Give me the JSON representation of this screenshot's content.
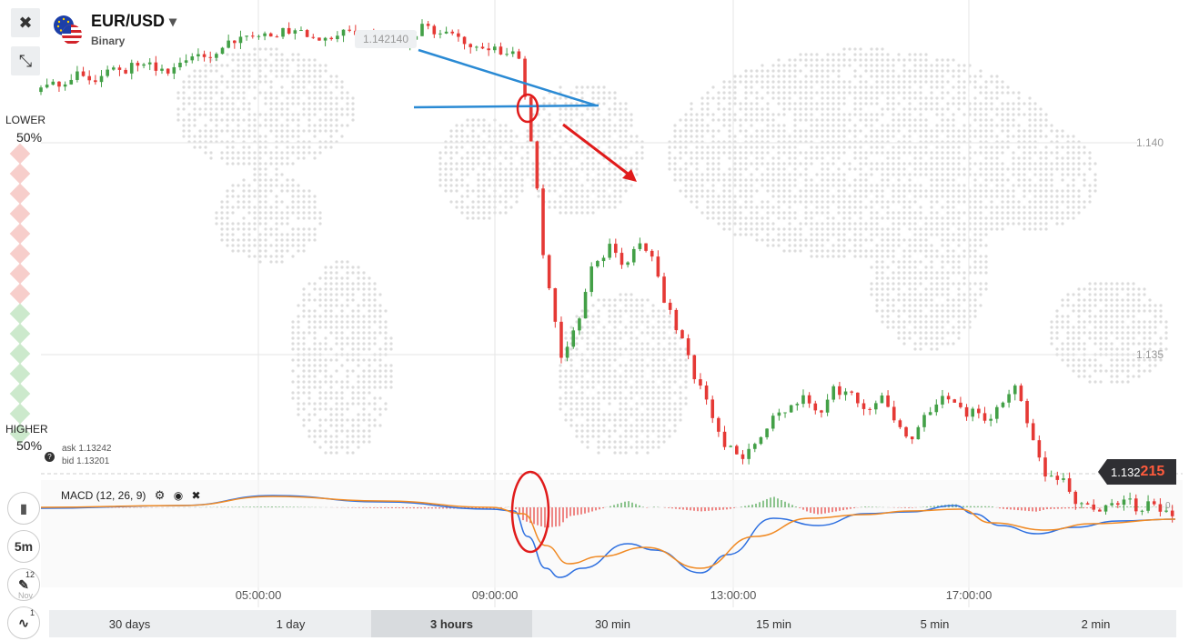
{
  "header": {
    "pair": "EUR/USD",
    "type": "Binary",
    "close_glyph": "✖",
    "collapse_glyph": "⤡",
    "dropdown_glyph": "▾"
  },
  "side": {
    "lower_label": "LOWER",
    "lower_pct": "50%",
    "higher_label": "HIGHER",
    "higher_pct": "50%",
    "ask": "ask 1.13242",
    "bid": "bid 1.13201",
    "help_glyph": "?"
  },
  "price_axis": {
    "top_label": "1.142140",
    "labels": [
      "1.140",
      "1.135"
    ]
  },
  "current_price": {
    "prefix": "1.132",
    "suffix": "215"
  },
  "macd": {
    "label": "MACD (12, 26, 9)",
    "zero": "0"
  },
  "time_labels": [
    "05:00:00",
    "09:00:00",
    "13:00:00",
    "17:00:00"
  ],
  "left_tools": {
    "candle_glyph": "▮",
    "interval": "5m",
    "draw_badge": "12",
    "draw_sub": "Nov",
    "indicator_badge": "1"
  },
  "timeframes": [
    {
      "label": "30 days",
      "active": false
    },
    {
      "label": "1 day",
      "active": false
    },
    {
      "label": "3 hours",
      "active": true
    },
    {
      "label": "30 min",
      "active": false
    },
    {
      "label": "15 min",
      "active": false
    },
    {
      "label": "5 min",
      "active": false
    },
    {
      "label": "2 min",
      "active": false
    }
  ],
  "colors": {
    "up": "#43a047",
    "down": "#e53935",
    "macd_line": "#2d6fe0",
    "signal_line": "#f08a24",
    "annotation_blue": "#2a8ad4",
    "annotation_red": "#e01b1b"
  },
  "chart_data": {
    "type": "candlestick",
    "price_axis_labels": [
      1.14,
      1.135
    ],
    "time_axis_labels": [
      "05:00:00",
      "09:00:00",
      "13:00:00",
      "17:00:00"
    ],
    "close_series_approx": [
      1.1413,
      1.1413,
      1.1416,
      1.1415,
      1.1417,
      1.1416,
      1.1419,
      1.1418,
      1.1416,
      1.1419,
      1.1422,
      1.1421,
      1.1424,
      1.1425,
      1.1426,
      1.1426,
      1.1427,
      1.1426,
      1.1425,
      1.1425,
      1.1426,
      1.1425,
      1.1424,
      1.1423,
      1.1425,
      1.1428,
      1.1426,
      1.1424,
      1.1423,
      1.1422,
      1.1422,
      1.1421,
      1.14,
      1.1365,
      1.135,
      1.1358,
      1.137,
      1.1375,
      1.1371,
      1.1376,
      1.1373,
      1.136,
      1.1353,
      1.1343,
      1.1335,
      1.1328,
      1.1325,
      1.133,
      1.1336,
      1.1338,
      1.134,
      1.1337,
      1.1342,
      1.134,
      1.1337,
      1.134,
      1.1335,
      1.133,
      1.1337,
      1.134,
      1.1338,
      1.1336,
      1.1334,
      1.1338,
      1.1342,
      1.1331,
      1.1322,
      1.132,
      1.1316,
      1.1314,
      1.1315,
      1.1316,
      1.1314,
      1.1315,
      1.1313,
      1.1312,
      1.1312,
      1.1311
    ]
  }
}
